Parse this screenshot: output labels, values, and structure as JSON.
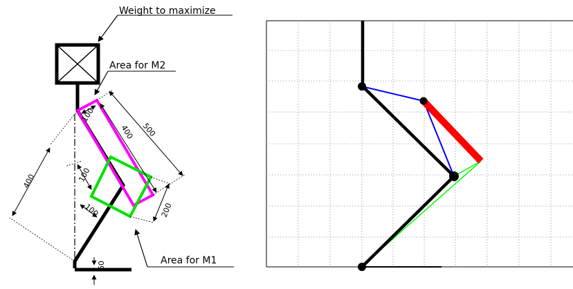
{
  "labels": {
    "weight": "Weight to maximize",
    "area_m2": "Area for M2",
    "area_m1": "Area for M1"
  },
  "dimensions": {
    "top_box_side": "100",
    "top_box_length": "400",
    "outer_span": "500",
    "vertical_span": "400",
    "green_box_side_a": "100",
    "green_box_side_b": "100",
    "lower_span": "200",
    "foot_offset": "60"
  },
  "colors": {
    "limb": "#000000",
    "area_m2": "#ff00ff",
    "area_m1": "#00e000",
    "link_blue": "#0000ff",
    "link_red": "#ff0000",
    "link_green": "#00ff00",
    "grid": "#999999"
  }
}
